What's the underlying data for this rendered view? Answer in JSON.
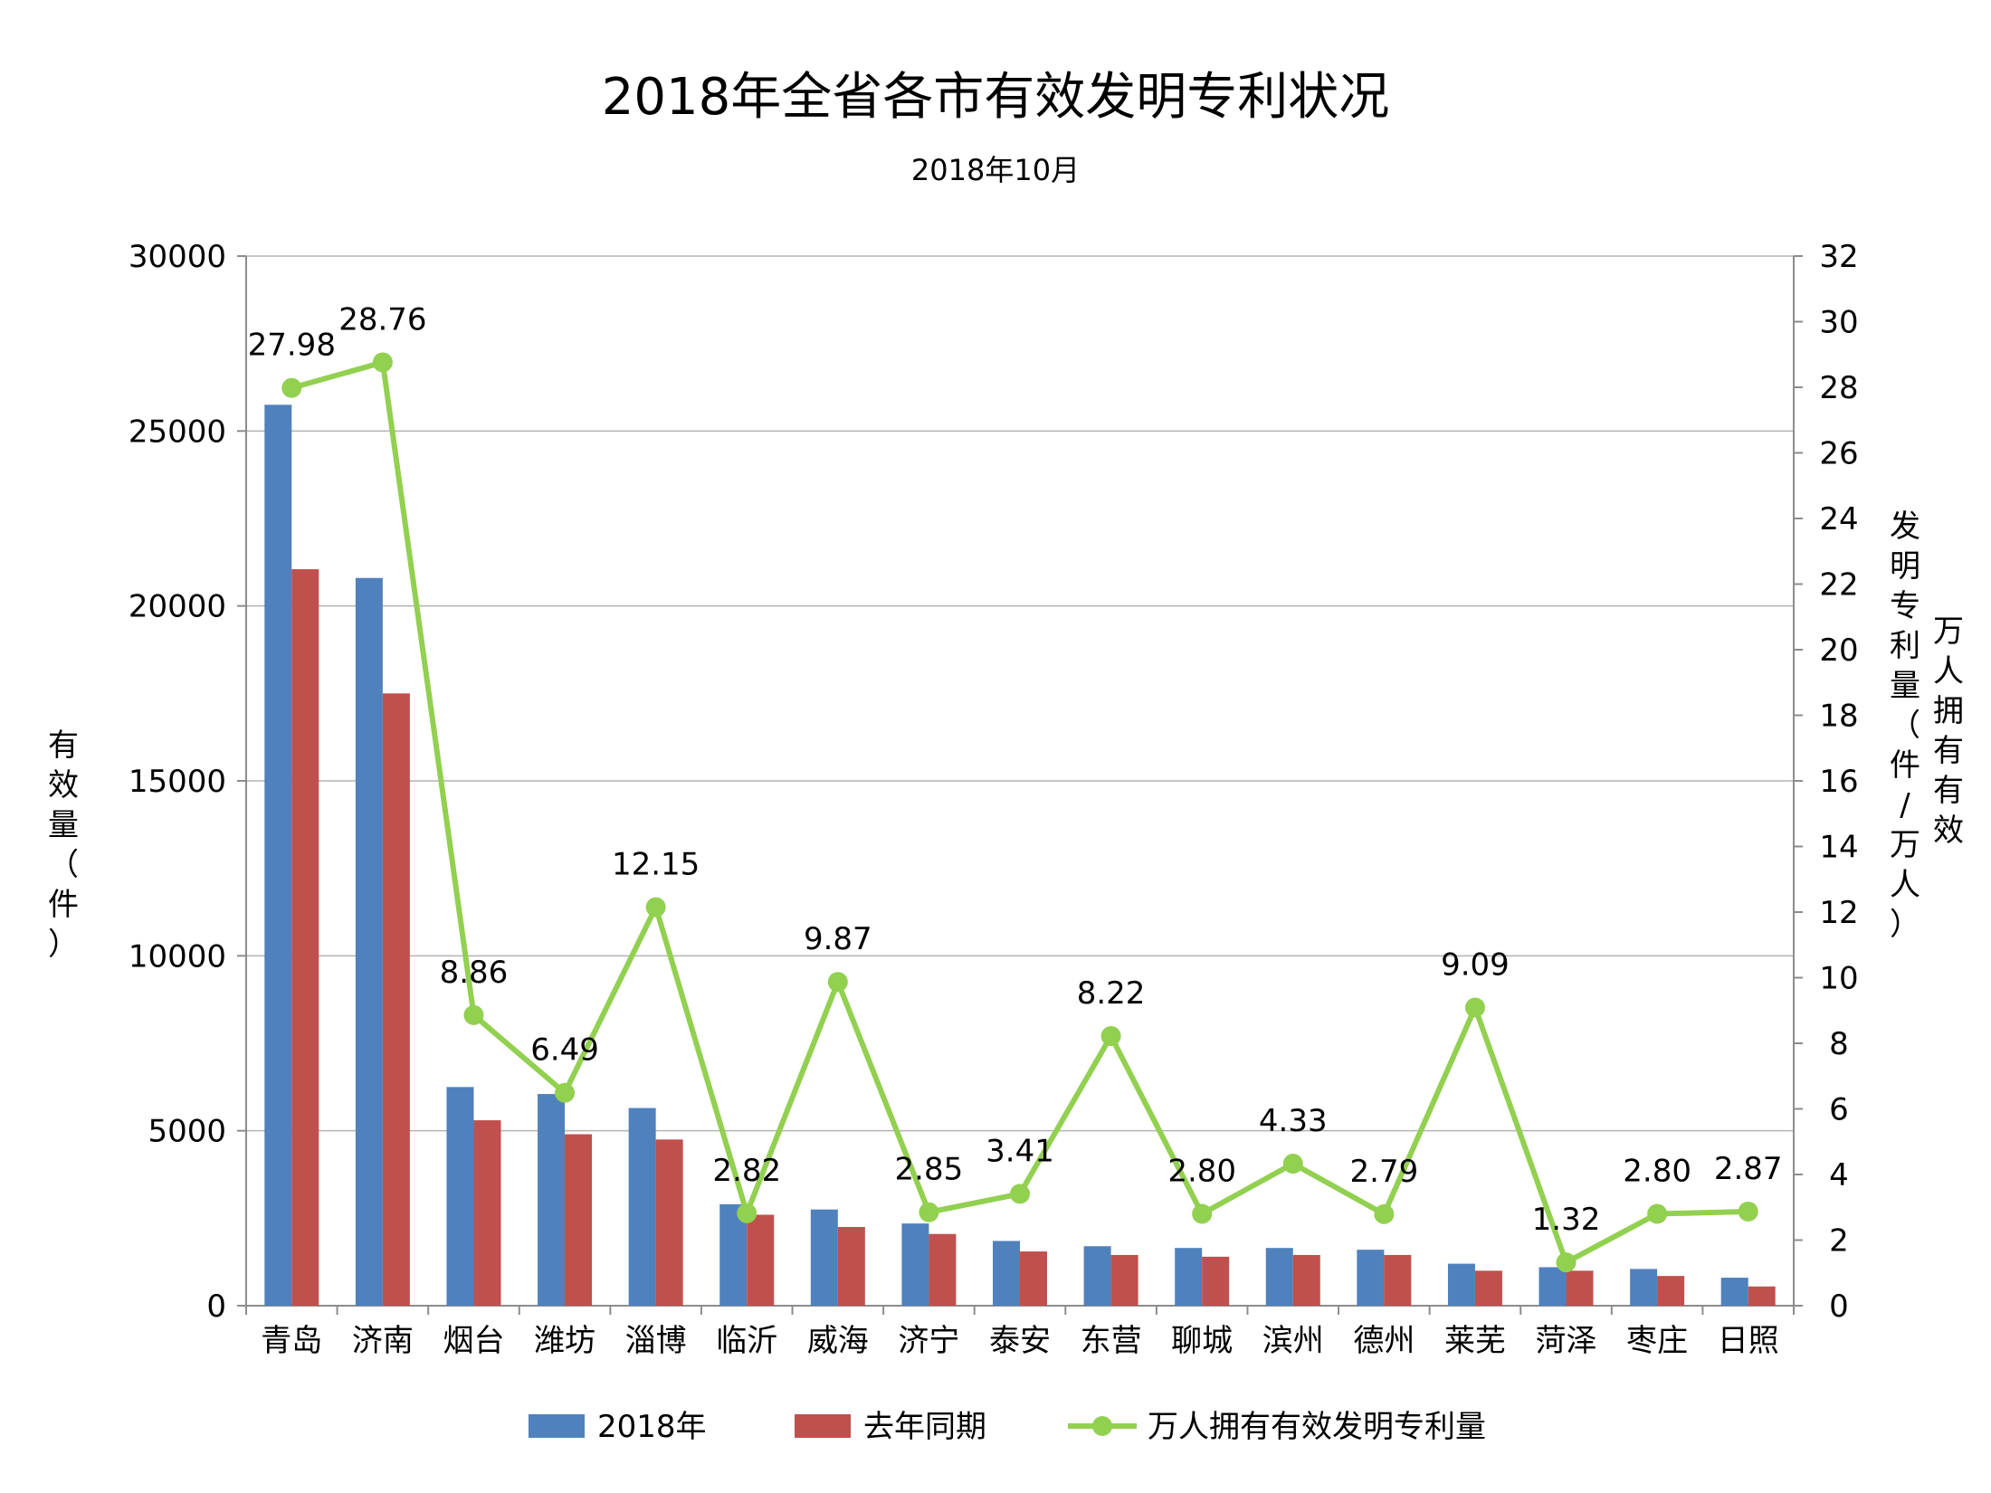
{
  "chart_data": {
    "type": "bar",
    "title": "2018年全省各市有效发明专利状况",
    "subtitle": "2018年10月",
    "categories": [
      "青岛",
      "济南",
      "烟台",
      "潍坊",
      "淄博",
      "临沂",
      "威海",
      "济宁",
      "泰安",
      "东营",
      "聊城",
      "滨州",
      "德州",
      "莱芜",
      "菏泽",
      "枣庄",
      "日照"
    ],
    "series": [
      {
        "name": "2018年",
        "type": "bar",
        "axis": "left",
        "color": "#4f81bd",
        "values": [
          25750,
          20800,
          6250,
          6050,
          5650,
          2900,
          2750,
          2350,
          1850,
          1700,
          1650,
          1650,
          1600,
          1200,
          1100,
          1050,
          800
        ]
      },
      {
        "name": "去年同期",
        "type": "bar",
        "axis": "left",
        "color": "#c0504d",
        "values": [
          21050,
          17500,
          5300,
          4900,
          4750,
          2600,
          2250,
          2050,
          1550,
          1450,
          1400,
          1450,
          1450,
          1000,
          1000,
          850,
          550
        ]
      },
      {
        "name": "万人拥有有效发明专利量",
        "type": "line",
        "axis": "right",
        "color": "#92d050",
        "values": [
          27.98,
          28.76,
          8.86,
          6.49,
          12.15,
          2.82,
          9.87,
          2.85,
          3.41,
          8.22,
          2.8,
          4.33,
          2.79,
          9.09,
          1.32,
          2.8,
          2.87
        ],
        "labels": [
          "27.98",
          "28.76",
          "8.86",
          "6.49",
          "12.15",
          "2.82",
          "9.87",
          "2.85",
          "3.41",
          "8.22",
          "2.80",
          "4.33",
          "2.79",
          "9.09",
          "1.32",
          "2.80",
          "2.87"
        ]
      }
    ],
    "ylabel_left": "有效量（件）",
    "ylabel_right_outer": "万人拥有有效",
    "ylabel_right_inner": "发明专利量（件/万人）",
    "ylim_left": [
      0,
      30000
    ],
    "yticks_left": [
      "0",
      "5000",
      "10000",
      "15000",
      "20000",
      "25000",
      "30000"
    ],
    "ylim_right": [
      0,
      32
    ],
    "yticks_right": [
      "0",
      "2",
      "4",
      "6",
      "8",
      "10",
      "12",
      "14",
      "16",
      "18",
      "20",
      "22",
      "24",
      "26",
      "28",
      "30",
      "32"
    ],
    "grid": true,
    "legend_position": "bottom"
  }
}
